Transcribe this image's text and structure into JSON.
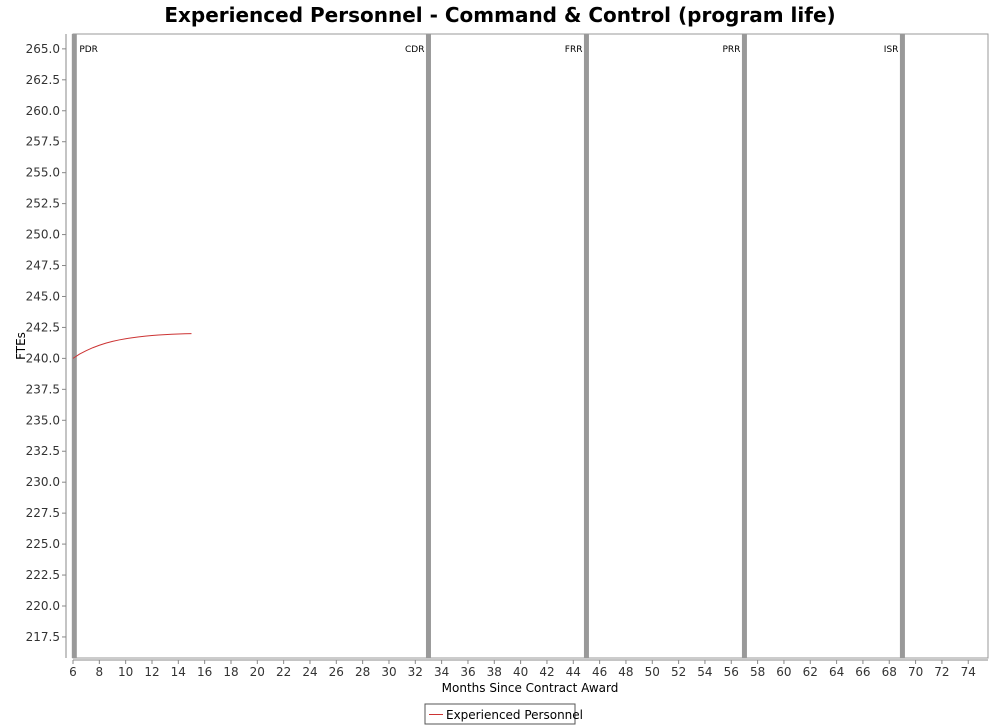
{
  "chart_data": {
    "type": "line",
    "title": "Experienced Personnel - Command & Control (program life)",
    "xlabel": "Months Since Contract Award",
    "ylabel": "FTEs",
    "xlim": [
      6,
      75.5
    ],
    "ylim": [
      215.8,
      266.2
    ],
    "x_ticks": [
      6,
      8,
      10,
      12,
      14,
      16,
      18,
      20,
      22,
      24,
      26,
      28,
      30,
      32,
      34,
      36,
      38,
      40,
      42,
      44,
      46,
      48,
      50,
      52,
      54,
      56,
      58,
      60,
      62,
      64,
      66,
      68,
      70,
      72,
      74
    ],
    "y_ticks": [
      "217.5",
      "220.0",
      "222.5",
      "225.0",
      "227.5",
      "230.0",
      "232.5",
      "235.0",
      "237.5",
      "240.0",
      "242.5",
      "245.0",
      "247.5",
      "250.0",
      "252.5",
      "255.0",
      "257.5",
      "260.0",
      "262.5",
      "265.0"
    ],
    "grid": false,
    "legend_position": "bottom-center",
    "milestones": [
      {
        "label": "PDR",
        "x": 6.1
      },
      {
        "label": "CDR",
        "x": 33
      },
      {
        "label": "FRR",
        "x": 45
      },
      {
        "label": "PRR",
        "x": 57
      },
      {
        "label": "ISR",
        "x": 69
      }
    ],
    "series": [
      {
        "name": "Experienced Personnel",
        "color": "#cc3333",
        "x": [
          6,
          6.5,
          7,
          7.5,
          8,
          8.5,
          9,
          9.5,
          10,
          10.5,
          11,
          11.5,
          12,
          12.5,
          13,
          13.5,
          14,
          14.5,
          15
        ],
        "y": [
          240.0,
          240.35,
          240.62,
          240.86,
          241.06,
          241.23,
          241.37,
          241.49,
          241.59,
          241.67,
          241.74,
          241.8,
          241.85,
          241.89,
          241.92,
          241.95,
          241.97,
          241.99,
          242.0
        ]
      }
    ]
  }
}
